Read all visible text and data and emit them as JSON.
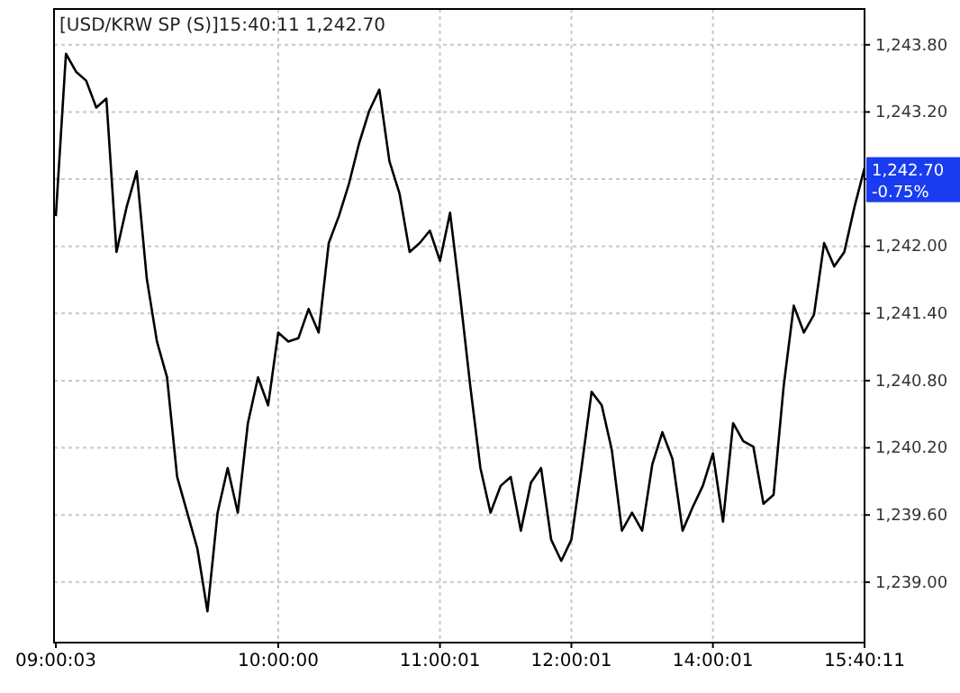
{
  "chart_data": {
    "type": "line",
    "title": "[USD/KRW SP (S)]15:40:11  1,242.70",
    "categories": [
      "09:00:03",
      null,
      null,
      null,
      null,
      null,
      null,
      null,
      null,
      null,
      null,
      null,
      null,
      null,
      null,
      null,
      null,
      null,
      null,
      null,
      null,
      null,
      "10:00:00",
      null,
      null,
      null,
      null,
      null,
      null,
      null,
      null,
      null,
      null,
      null,
      null,
      null,
      null,
      null,
      "11:00:01",
      null,
      null,
      null,
      null,
      null,
      null,
      null,
      null,
      null,
      null,
      null,
      null,
      "12:00:01",
      null,
      null,
      null,
      null,
      null,
      null,
      null,
      null,
      null,
      null,
      null,
      null,
      null,
      "14:00:01",
      null,
      null,
      null,
      null,
      null,
      null,
      null,
      null,
      null,
      null,
      null,
      null,
      null,
      null,
      "15:40:11"
    ],
    "series": [
      {
        "color": "#000000",
        "values": [
          1242.27,
          1243.72,
          1243.56,
          1243.48,
          1243.24,
          1243.32,
          1241.95,
          1242.35,
          1242.67,
          1241.71,
          1241.15,
          1240.83,
          1239.94,
          1239.62,
          1239.3,
          1238.74,
          1239.62,
          1240.02,
          1239.62,
          1240.42,
          1240.83,
          1240.58,
          1241.23,
          1241.15,
          1241.18,
          1241.44,
          1241.23,
          1242.03,
          1242.27,
          1242.56,
          1242.92,
          1243.21,
          1243.4,
          1242.76,
          1242.47,
          1241.95,
          1242.03,
          1242.14,
          1241.87,
          1242.3,
          1241.55,
          1240.75,
          1240.02,
          1239.62,
          1239.86,
          1239.94,
          1239.46,
          1239.89,
          1240.02,
          1239.38,
          1239.19,
          1239.38,
          1240.02,
          1240.7,
          1240.58,
          1240.18,
          1239.46,
          1239.62,
          1239.46,
          1240.05,
          1240.34,
          1240.1,
          1239.46,
          1239.67,
          1239.86,
          1240.15,
          1239.54,
          1240.42,
          1240.26,
          1240.21,
          1239.7,
          1239.78,
          1240.75,
          1241.47,
          1241.23,
          1241.39,
          1242.03,
          1241.82,
          1241.95,
          1242.35,
          1242.7
        ]
      }
    ],
    "ylim": [
      1238.46,
      1244.12
    ],
    "yticks": [
      {
        "value": 1239.0,
        "label": "1,239.00"
      },
      {
        "value": 1239.6,
        "label": "1,239.60"
      },
      {
        "value": 1240.2,
        "label": "1,240.20"
      },
      {
        "value": 1240.8,
        "label": "1,240.80"
      },
      {
        "value": 1241.4,
        "label": "1,241.40"
      },
      {
        "value": 1242.0,
        "label": "1,242.00"
      },
      {
        "value": 1242.6,
        "label": null
      },
      {
        "value": 1243.2,
        "label": "1,243.20"
      },
      {
        "value": 1243.8,
        "label": "1,243.80"
      }
    ],
    "annotations": [
      {
        "text": "1,242.70",
        "x": "15:40:11",
        "y": 1242.7
      },
      {
        "text": "-0.75%",
        "x": "15:40:11",
        "y": 1242.7
      }
    ],
    "grid": true,
    "marker": "none",
    "line_style": "solid"
  }
}
